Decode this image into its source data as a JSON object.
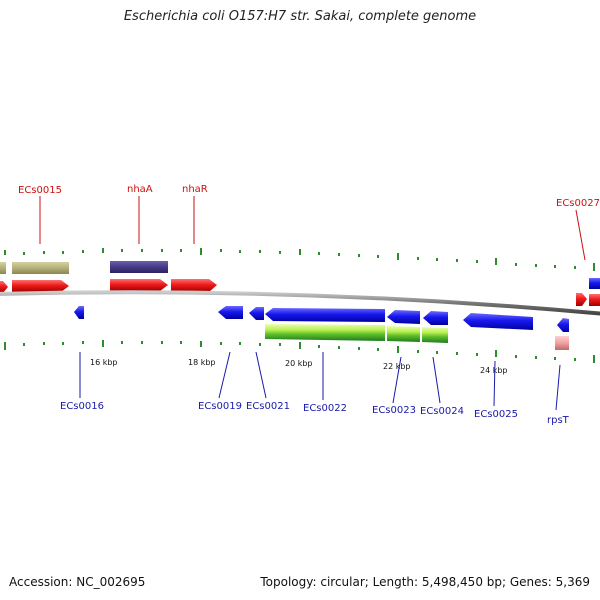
{
  "title": "Escherichia coli O157:H7 str. Sakai, complete genome",
  "footer": {
    "accession": "Accession: NC_002695",
    "summary": "Topology: circular; Length: 5,498,450 bp; Genes: 5,369"
  },
  "scale": {
    "ticks": [
      "16 kbp",
      "18 kbp",
      "20 kbp",
      "22 kbp",
      "24 kbp"
    ]
  },
  "genes_forward": [
    "ECs0015",
    "nhaA",
    "nhaR",
    "ECs0027"
  ],
  "genes_reverse": [
    "ECs0016",
    "ECs0019",
    "ECs0021",
    "ECs0022",
    "ECs0023",
    "ECs0024",
    "ECs0025",
    "rpsT"
  ],
  "colors": {
    "forward_cds": "#e01010",
    "reverse_cds": "#1515e8",
    "forward_label": "#cc1111",
    "reverse_label": "#1a1aaa",
    "cog_olive": "#b5b07a",
    "cog_purple": "#4a3d8a",
    "cog_green": "#9bdb3a",
    "cog_pink": "#f0a0a0",
    "backbone": "#888888",
    "tick": "#2e8b2e"
  }
}
